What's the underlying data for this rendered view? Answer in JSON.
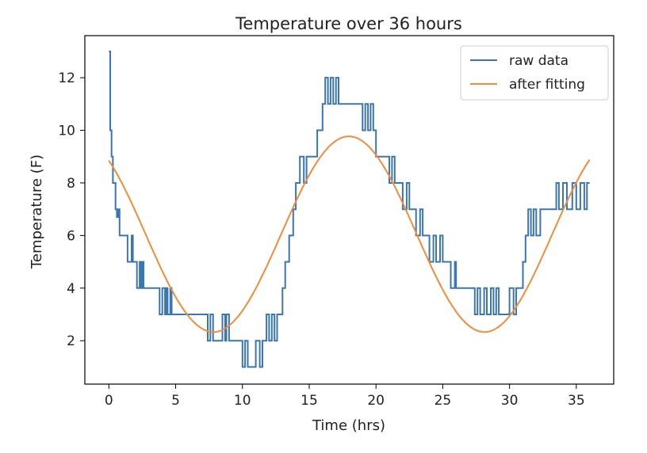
{
  "chart_data": {
    "type": "line",
    "title": "Temperature over 36 hours",
    "xlabel": "Time (hrs)",
    "ylabel": "Temperature (F)",
    "xlim": [
      -1.8,
      37.8
    ],
    "ylim": [
      0.35,
      13.6
    ],
    "xticks": [
      0,
      5,
      10,
      15,
      20,
      25,
      30,
      35
    ],
    "yticks": [
      2,
      4,
      6,
      8,
      10,
      12
    ],
    "legend_position": "top-right",
    "grid": false,
    "series": [
      {
        "name": "raw data",
        "color": "#3a76b0",
        "style": "step",
        "points": [
          [
            0,
            13
          ],
          [
            0.1,
            10
          ],
          [
            0.2,
            9
          ],
          [
            0.3,
            8
          ],
          [
            0.5,
            7
          ],
          [
            0.6,
            6.7
          ],
          [
            0.7,
            7
          ],
          [
            0.8,
            6
          ],
          [
            1.0,
            6
          ],
          [
            1.2,
            6
          ],
          [
            1.3,
            6
          ],
          [
            1.4,
            5
          ],
          [
            1.6,
            5
          ],
          [
            1.7,
            6
          ],
          [
            1.8,
            5
          ],
          [
            2.0,
            5
          ],
          [
            2.1,
            4
          ],
          [
            2.3,
            5
          ],
          [
            2.4,
            4
          ],
          [
            2.5,
            5
          ],
          [
            2.6,
            4
          ],
          [
            3.0,
            4
          ],
          [
            3.5,
            4
          ],
          [
            3.8,
            3
          ],
          [
            4.0,
            4
          ],
          [
            4.2,
            3
          ],
          [
            4.3,
            4
          ],
          [
            4.4,
            3
          ],
          [
            4.6,
            4
          ],
          [
            4.7,
            3
          ],
          [
            5.0,
            3
          ],
          [
            6.0,
            3
          ],
          [
            7.0,
            3
          ],
          [
            7.4,
            2
          ],
          [
            7.6,
            3
          ],
          [
            7.8,
            2
          ],
          [
            8.0,
            2
          ],
          [
            8.5,
            3
          ],
          [
            8.7,
            2
          ],
          [
            8.8,
            3
          ],
          [
            9.0,
            2
          ],
          [
            9.5,
            2
          ],
          [
            10.0,
            1
          ],
          [
            10.2,
            2
          ],
          [
            10.4,
            1
          ],
          [
            10.6,
            1
          ],
          [
            11.0,
            2
          ],
          [
            11.3,
            1
          ],
          [
            11.5,
            2
          ],
          [
            11.8,
            3
          ],
          [
            12.0,
            2
          ],
          [
            12.2,
            3
          ],
          [
            12.4,
            2
          ],
          [
            12.6,
            3
          ],
          [
            12.8,
            3
          ],
          [
            13.0,
            4
          ],
          [
            13.2,
            5
          ],
          [
            13.5,
            6
          ],
          [
            13.8,
            7
          ],
          [
            14.0,
            8
          ],
          [
            14.3,
            9
          ],
          [
            14.6,
            8
          ],
          [
            14.8,
            9
          ],
          [
            15.2,
            9
          ],
          [
            15.6,
            10
          ],
          [
            15.9,
            10
          ],
          [
            16.0,
            11
          ],
          [
            16.2,
            12
          ],
          [
            16.4,
            11
          ],
          [
            16.6,
            12
          ],
          [
            16.8,
            11
          ],
          [
            17.0,
            12
          ],
          [
            17.2,
            11
          ],
          [
            18.0,
            11
          ],
          [
            18.9,
            11
          ],
          [
            19.0,
            10
          ],
          [
            19.2,
            11
          ],
          [
            19.4,
            10
          ],
          [
            19.6,
            11
          ],
          [
            19.8,
            10
          ],
          [
            20.0,
            9
          ],
          [
            20.5,
            9
          ],
          [
            21.0,
            8
          ],
          [
            21.2,
            9
          ],
          [
            21.4,
            8
          ],
          [
            21.6,
            8
          ],
          [
            22.0,
            7
          ],
          [
            22.3,
            8
          ],
          [
            22.5,
            7
          ],
          [
            22.8,
            7
          ],
          [
            23.0,
            6
          ],
          [
            23.3,
            7
          ],
          [
            23.5,
            6
          ],
          [
            23.8,
            6
          ],
          [
            24.0,
            5
          ],
          [
            24.3,
            6
          ],
          [
            24.5,
            5
          ],
          [
            24.8,
            6
          ],
          [
            25.0,
            5
          ],
          [
            25.4,
            5
          ],
          [
            25.6,
            4
          ],
          [
            25.9,
            5
          ],
          [
            26.0,
            4
          ],
          [
            27.0,
            4
          ],
          [
            27.4,
            3
          ],
          [
            27.6,
            4
          ],
          [
            27.8,
            3
          ],
          [
            28.1,
            4
          ],
          [
            28.3,
            3
          ],
          [
            28.6,
            4
          ],
          [
            28.8,
            3
          ],
          [
            29.0,
            4
          ],
          [
            29.2,
            3
          ],
          [
            29.5,
            3
          ],
          [
            30.0,
            4
          ],
          [
            30.3,
            3
          ],
          [
            30.5,
            4
          ],
          [
            30.7,
            4
          ],
          [
            31.0,
            5
          ],
          [
            31.2,
            6
          ],
          [
            31.4,
            7
          ],
          [
            31.6,
            6
          ],
          [
            31.8,
            7
          ],
          [
            32.0,
            6
          ],
          [
            32.3,
            7
          ],
          [
            32.6,
            7
          ],
          [
            33.0,
            7
          ],
          [
            33.5,
            8
          ],
          [
            33.7,
            7
          ],
          [
            34.0,
            8
          ],
          [
            34.3,
            7
          ],
          [
            34.7,
            8
          ],
          [
            35.0,
            7
          ],
          [
            35.3,
            8
          ],
          [
            35.6,
            7
          ],
          [
            35.8,
            8
          ],
          [
            36.0,
            8
          ]
        ]
      },
      {
        "name": "after fitting",
        "color": "#f08c3a",
        "style": "line",
        "function": "a + b*sin(2*pi*(x - phase)/period)",
        "params": {
          "a": 6.05,
          "b": 3.72,
          "phase": 12.9,
          "period": 20.3
        },
        "x_range": [
          0,
          36
        ]
      }
    ]
  }
}
